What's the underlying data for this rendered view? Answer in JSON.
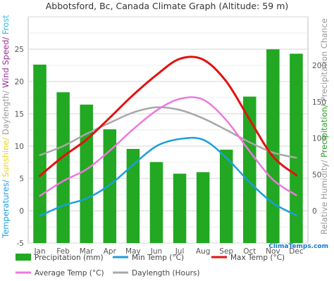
{
  "chart_data": {
    "type": "bar",
    "title": "Abbotsford, Bc, Canada Climate Graph (Altitude: 59 m)",
    "categories": [
      "Jan",
      "Feb",
      "Mar",
      "Apr",
      "May",
      "Jun",
      "Jul",
      "Aug",
      "Sep",
      "Oct",
      "Nov",
      "Dec"
    ],
    "y_left": {
      "ticks": [
        -5,
        0,
        5,
        10,
        15,
        20,
        25
      ],
      "ylim": [
        -5,
        30
      ],
      "label_parts": [
        {
          "text": "Temperatures/",
          "color": "#1a9fdd"
        },
        {
          "text": " Sunshine/",
          "color": "#e8d31d"
        },
        {
          "text": " Daylength/",
          "color": "#999999"
        },
        {
          "text": " Wind Speed/",
          "color": "#9a2f99"
        },
        {
          "text": " Frost",
          "color": "#27c0e6"
        }
      ]
    },
    "y_right": {
      "ticks": [
        0,
        50,
        100,
        150,
        200
      ],
      "label_parts": [
        {
          "text": "Relative Humidity/",
          "color": "#999999"
        },
        {
          "text": " Precipitation/",
          "color": "#2ca02c"
        },
        {
          "text": " Precipitation Chance",
          "color": "#999999"
        }
      ]
    },
    "grid": true,
    "series": [
      {
        "name": "Precipitation (mm)",
        "kind": "bar",
        "axis": "right",
        "color": "#22a822",
        "values": [
          201,
          163,
          146,
          112,
          85,
          67,
          51,
          53,
          84,
          157,
          222,
          216
        ]
      },
      {
        "name": "Min Temp (°C)",
        "kind": "line",
        "axis": "left",
        "color": "#1a9fdd",
        "values": [
          -0.8,
          0.8,
          1.9,
          4.0,
          7.1,
          10.0,
          11.1,
          11.0,
          8.2,
          4.4,
          1.2,
          -0.7
        ]
      },
      {
        "name": "Max Temp (°C)",
        "kind": "line",
        "axis": "left",
        "color": "#e3110f",
        "values": [
          5.4,
          8.4,
          11.0,
          14.4,
          17.9,
          21.0,
          23.5,
          23.4,
          20.0,
          14.1,
          8.4,
          5.5
        ]
      },
      {
        "name": "Average Temp (°C)",
        "kind": "line",
        "axis": "left",
        "color": "#ee77dd",
        "values": [
          2.3,
          4.6,
          6.4,
          9.3,
          12.6,
          15.5,
          17.3,
          17.2,
          14.0,
          9.2,
          4.8,
          2.4
        ]
      },
      {
        "name": "Daylength (Hours)",
        "kind": "line",
        "axis": "left",
        "color": "#a8a8a8",
        "values": [
          8.6,
          10.0,
          11.9,
          13.6,
          15.2,
          16.0,
          15.6,
          14.3,
          12.5,
          10.6,
          9.0,
          8.2
        ]
      }
    ],
    "legend": {
      "placement": "bottom",
      "brand": "ClimaTemps.com"
    }
  }
}
